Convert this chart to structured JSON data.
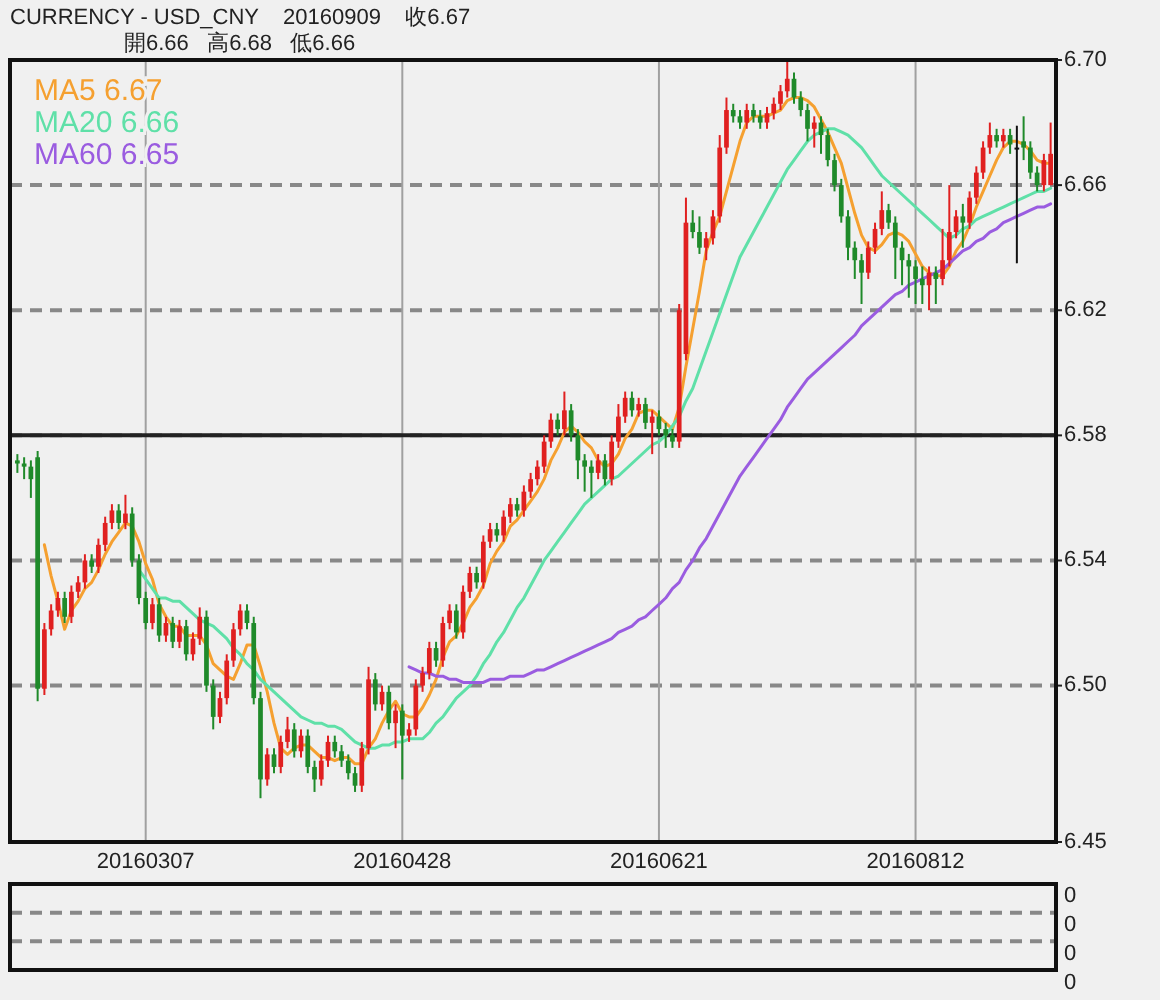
{
  "chart_data": [
    {
      "type": "candlestick",
      "title": "CURRENCY - USD_CNY    20160909    收6.67",
      "subtitle": "開6.66   高6.68   低6.66",
      "categories": [
        null,
        null,
        null,
        null,
        null,
        null,
        null,
        null,
        null,
        null,
        null,
        null,
        null,
        null,
        null,
        null,
        null,
        null,
        null,
        "20160307",
        null,
        null,
        null,
        null,
        null,
        null,
        null,
        null,
        null,
        null,
        null,
        null,
        null,
        null,
        null,
        null,
        null,
        null,
        null,
        null,
        null,
        null,
        null,
        null,
        null,
        null,
        null,
        null,
        null,
        null,
        null,
        null,
        null,
        null,
        null,
        null,
        null,
        "20160428",
        null,
        null,
        null,
        null,
        null,
        null,
        null,
        null,
        null,
        null,
        null,
        null,
        null,
        null,
        null,
        null,
        null,
        null,
        null,
        null,
        null,
        null,
        null,
        null,
        null,
        null,
        null,
        null,
        null,
        null,
        null,
        null,
        null,
        null,
        null,
        null,
        null,
        "20160621",
        null,
        null,
        null,
        null,
        null,
        null,
        null,
        null,
        null,
        null,
        null,
        null,
        null,
        null,
        null,
        null,
        null,
        null,
        null,
        null,
        null,
        null,
        null,
        null,
        null,
        null,
        null,
        null,
        null,
        null,
        null,
        null,
        null,
        null,
        null,
        null,
        null,
        "20160812",
        null,
        null,
        null,
        null,
        null,
        null,
        null,
        null,
        null,
        null,
        null,
        null,
        null,
        null,
        null,
        null,
        null,
        null,
        null,
        null
      ],
      "ohlc": [
        [
          6.572,
          6.574,
          6.568,
          6.571
        ],
        [
          6.571,
          6.573,
          6.566,
          6.57
        ],
        [
          6.57,
          6.572,
          6.56,
          6.566
        ],
        [
          6.573,
          6.575,
          6.495,
          6.499
        ],
        [
          6.499,
          6.52,
          6.497,
          6.518
        ],
        [
          6.518,
          6.526,
          6.516,
          6.524
        ],
        [
          6.524,
          6.53,
          6.522,
          6.528
        ],
        [
          6.528,
          6.53,
          6.52,
          6.522
        ],
        [
          6.522,
          6.532,
          6.52,
          6.53
        ],
        [
          6.53,
          6.535,
          6.528,
          6.533
        ],
        [
          6.533,
          6.542,
          6.531,
          6.54
        ],
        [
          6.54,
          6.542,
          6.536,
          6.538
        ],
        [
          6.538,
          6.547,
          6.536,
          6.545
        ],
        [
          6.545,
          6.554,
          6.543,
          6.552
        ],
        [
          6.552,
          6.558,
          6.55,
          6.556
        ],
        [
          6.556,
          6.558,
          6.55,
          6.552
        ],
        [
          6.552,
          6.561,
          6.55,
          6.555
        ],
        [
          6.555,
          6.557,
          6.538,
          6.54
        ],
        [
          6.54,
          6.542,
          6.526,
          6.528
        ],
        [
          6.528,
          6.53,
          6.518,
          6.52
        ],
        [
          6.52,
          6.528,
          6.518,
          6.526
        ],
        [
          6.526,
          6.528,
          6.514,
          6.516
        ],
        [
          6.516,
          6.522,
          6.514,
          6.52
        ],
        [
          6.52,
          6.522,
          6.512,
          6.514
        ],
        [
          6.514,
          6.521,
          6.512,
          6.519
        ],
        [
          6.519,
          6.521,
          6.508,
          6.51
        ],
        [
          6.51,
          6.517,
          6.508,
          6.515
        ],
        [
          6.515,
          6.525,
          6.513,
          6.522
        ],
        [
          6.522,
          6.524,
          6.498,
          6.5
        ],
        [
          6.5,
          6.502,
          6.486,
          6.49
        ],
        [
          6.49,
          6.498,
          6.488,
          6.496
        ],
        [
          6.496,
          6.51,
          6.494,
          6.508
        ],
        [
          6.508,
          6.52,
          6.506,
          6.518
        ],
        [
          6.518,
          6.526,
          6.516,
          6.524
        ],
        [
          6.524,
          6.526,
          6.518,
          6.52
        ],
        [
          6.52,
          6.522,
          6.494,
          6.496
        ],
        [
          6.496,
          6.498,
          6.464,
          6.47
        ],
        [
          6.47,
          6.48,
          6.468,
          6.478
        ],
        [
          6.478,
          6.48,
          6.472,
          6.474
        ],
        [
          6.474,
          6.484,
          6.472,
          6.482
        ],
        [
          6.482,
          6.49,
          6.48,
          6.486
        ],
        [
          6.486,
          6.488,
          6.477,
          6.479
        ],
        [
          6.479,
          6.486,
          6.477,
          6.484
        ],
        [
          6.484,
          6.486,
          6.472,
          6.474
        ],
        [
          6.474,
          6.476,
          6.466,
          6.47
        ],
        [
          6.47,
          6.478,
          6.468,
          6.476
        ],
        [
          6.476,
          6.484,
          6.474,
          6.482
        ],
        [
          6.482,
          6.484,
          6.477,
          6.479
        ],
        [
          6.479,
          6.481,
          6.474,
          6.476
        ],
        [
          6.476,
          6.478,
          6.47,
          6.472
        ],
        [
          6.472,
          6.474,
          6.466,
          6.468
        ],
        [
          6.468,
          6.482,
          6.466,
          6.48
        ],
        [
          6.48,
          6.506,
          6.478,
          6.502
        ],
        [
          6.502,
          6.504,
          6.492,
          6.494
        ],
        [
          6.494,
          6.5,
          6.492,
          6.498
        ],
        [
          6.498,
          6.5,
          6.486,
          6.488
        ],
        [
          6.488,
          6.494,
          6.48,
          6.492
        ],
        [
          6.492,
          6.494,
          6.47,
          6.484
        ],
        [
          6.484,
          6.488,
          6.482,
          6.486
        ],
        [
          6.486,
          6.502,
          6.484,
          6.5
        ],
        [
          6.5,
          6.506,
          6.498,
          6.504
        ],
        [
          6.504,
          6.514,
          6.502,
          6.512
        ],
        [
          6.512,
          6.514,
          6.506,
          6.508
        ],
        [
          6.508,
          6.522,
          6.506,
          6.52
        ],
        [
          6.52,
          6.526,
          6.518,
          6.524
        ],
        [
          6.524,
          6.526,
          6.515,
          6.517
        ],
        [
          6.517,
          6.532,
          6.515,
          6.53
        ],
        [
          6.53,
          6.538,
          6.528,
          6.536
        ],
        [
          6.536,
          6.538,
          6.531,
          6.533
        ],
        [
          6.533,
          6.548,
          6.531,
          6.546
        ],
        [
          6.546,
          6.552,
          6.544,
          6.55
        ],
        [
          6.55,
          6.552,
          6.546,
          6.548
        ],
        [
          6.548,
          6.556,
          6.546,
          6.554
        ],
        [
          6.554,
          6.56,
          6.552,
          6.558
        ],
        [
          6.558,
          6.56,
          6.554,
          6.556
        ],
        [
          6.556,
          6.564,
          6.554,
          6.562
        ],
        [
          6.562,
          6.568,
          6.56,
          6.566
        ],
        [
          6.566,
          6.572,
          6.564,
          6.57
        ],
        [
          6.57,
          6.58,
          6.568,
          6.578
        ],
        [
          6.578,
          6.587,
          6.576,
          6.585
        ],
        [
          6.585,
          6.587,
          6.58,
          6.582
        ],
        [
          6.582,
          6.594,
          6.58,
          6.588
        ],
        [
          6.588,
          6.59,
          6.578,
          6.58
        ],
        [
          6.58,
          6.582,
          6.566,
          6.572
        ],
        [
          6.572,
          6.574,
          6.562,
          6.57
        ],
        [
          6.57,
          6.572,
          6.56,
          6.568
        ],
        [
          6.568,
          6.574,
          6.566,
          6.572
        ],
        [
          6.572,
          6.574,
          6.564,
          6.566
        ],
        [
          6.566,
          6.58,
          6.564,
          6.578
        ],
        [
          6.578,
          6.59,
          6.576,
          6.586
        ],
        [
          6.586,
          6.594,
          6.584,
          6.592
        ],
        [
          6.592,
          6.594,
          6.586,
          6.588
        ],
        [
          6.588,
          6.592,
          6.586,
          6.59
        ],
        [
          6.59,
          6.592,
          6.582,
          6.584
        ],
        [
          6.584,
          6.588,
          6.574,
          6.586
        ],
        [
          6.586,
          6.588,
          6.58,
          6.582
        ],
        [
          6.582,
          6.584,
          6.576,
          6.58
        ],
        [
          6.58,
          6.582,
          6.576,
          6.578
        ],
        [
          6.578,
          6.622,
          6.576,
          6.62
        ],
        [
          6.606,
          6.656,
          6.604,
          6.648
        ],
        [
          6.648,
          6.652,
          6.643,
          6.645
        ],
        [
          6.645,
          6.65,
          6.638,
          6.64
        ],
        [
          6.64,
          6.645,
          6.636,
          6.643
        ],
        [
          6.643,
          6.652,
          6.641,
          6.65
        ],
        [
          6.65,
          6.676,
          6.648,
          6.672
        ],
        [
          6.672,
          6.688,
          6.67,
          6.684
        ],
        [
          6.684,
          6.686,
          6.68,
          6.682
        ],
        [
          6.682,
          6.684,
          6.678,
          6.68
        ],
        [
          6.68,
          6.686,
          6.678,
          6.684
        ],
        [
          6.684,
          6.686,
          6.68,
          6.682
        ],
        [
          6.682,
          6.684,
          6.678,
          6.68
        ],
        [
          6.68,
          6.685,
          6.678,
          6.683
        ],
        [
          6.683,
          6.688,
          6.681,
          6.686
        ],
        [
          6.686,
          6.692,
          6.684,
          6.69
        ],
        [
          6.69,
          6.7,
          6.688,
          6.694
        ],
        [
          6.694,
          6.696,
          6.686,
          6.688
        ],
        [
          6.688,
          6.69,
          6.682,
          6.684
        ],
        [
          6.684,
          6.686,
          6.674,
          6.678
        ],
        [
          6.678,
          6.682,
          6.672,
          6.68
        ],
        [
          6.68,
          6.682,
          6.67,
          6.676
        ],
        [
          6.676,
          6.678,
          6.666,
          6.668
        ],
        [
          6.668,
          6.67,
          6.658,
          6.66
        ],
        [
          6.66,
          6.662,
          6.648,
          6.65
        ],
        [
          6.65,
          6.652,
          6.636,
          6.64
        ],
        [
          6.64,
          6.642,
          6.63,
          6.636
        ],
        [
          6.636,
          6.638,
          6.622,
          6.632
        ],
        [
          6.632,
          6.642,
          6.63,
          6.64
        ],
        [
          6.64,
          6.648,
          6.638,
          6.646
        ],
        [
          6.646,
          6.658,
          6.644,
          6.652
        ],
        [
          6.652,
          6.654,
          6.646,
          6.648
        ],
        [
          6.648,
          6.65,
          6.63,
          6.64
        ],
        [
          6.64,
          6.642,
          6.628,
          6.636
        ],
        [
          6.636,
          6.638,
          6.624,
          6.634
        ],
        [
          6.634,
          6.636,
          6.622,
          6.63
        ],
        [
          6.63,
          6.634,
          6.622,
          6.628
        ],
        [
          6.628,
          6.634,
          6.62,
          6.632
        ],
        [
          6.632,
          6.634,
          6.622,
          6.63
        ],
        [
          6.63,
          6.646,
          6.628,
          6.636
        ],
        [
          6.636,
          6.66,
          6.634,
          6.645
        ],
        [
          6.645,
          6.652,
          6.643,
          6.65
        ],
        [
          6.65,
          6.654,
          6.64,
          6.648
        ],
        [
          6.648,
          6.658,
          6.646,
          6.656
        ],
        [
          6.656,
          6.666,
          6.654,
          6.664
        ],
        [
          6.664,
          6.674,
          6.662,
          6.672
        ],
        [
          6.672,
          6.68,
          6.67,
          6.676
        ],
        [
          6.676,
          6.678,
          6.672,
          6.674
        ],
        [
          6.674,
          6.678,
          6.672,
          6.676
        ],
        [
          6.676,
          6.678,
          6.67,
          6.673
        ],
        [
          6.672,
          6.679,
          6.635,
          6.672
        ],
        [
          6.674,
          6.682,
          6.668,
          6.672
        ],
        [
          6.672,
          6.674,
          6.662,
          6.664
        ],
        [
          6.664,
          6.666,
          6.658,
          6.66
        ],
        [
          6.66,
          6.67,
          6.658,
          6.668
        ],
        [
          6.66,
          6.68,
          6.66,
          6.67
        ]
      ],
      "series": [
        {
          "name": "MA5 6.67",
          "type": "line",
          "color": "#f5a030",
          "values": [
            null,
            null,
            null,
            null,
            6.545,
            6.535,
            6.527,
            6.518,
            6.524,
            6.527,
            6.531,
            6.533,
            6.537,
            6.542,
            6.546,
            6.549,
            6.552,
            6.551,
            6.546,
            6.539,
            6.534,
            6.526,
            6.522,
            6.519,
            6.519,
            6.516,
            6.516,
            6.516,
            6.513,
            6.507,
            6.505,
            6.503,
            6.502,
            6.507,
            6.513,
            6.513,
            6.506,
            6.498,
            6.488,
            6.48,
            6.478,
            6.48,
            6.481,
            6.481,
            6.479,
            6.477,
            6.477,
            6.476,
            6.477,
            6.477,
            6.475,
            6.475,
            6.48,
            6.483,
            6.488,
            6.492,
            6.495,
            6.491,
            6.49,
            6.49,
            6.493,
            6.497,
            6.502,
            6.509,
            6.514,
            6.516,
            6.52,
            6.525,
            6.528,
            6.532,
            6.539,
            6.543,
            6.546,
            6.551,
            6.553,
            6.556,
            6.559,
            6.562,
            6.566,
            6.572,
            6.576,
            6.581,
            6.583,
            6.581,
            6.578,
            6.576,
            6.572,
            6.57,
            6.571,
            6.574,
            6.579,
            6.582,
            6.587,
            6.588,
            6.588,
            6.586,
            6.584,
            6.582,
            6.589,
            6.602,
            6.614,
            6.626,
            6.639,
            6.645,
            6.65,
            6.658,
            6.666,
            6.674,
            6.68,
            6.682,
            6.682,
            6.682,
            6.683,
            6.684,
            6.687,
            6.688,
            6.688,
            6.687,
            6.685,
            6.681,
            6.677,
            6.672,
            6.667,
            6.659,
            6.651,
            6.644,
            6.64,
            6.639,
            6.641,
            6.644,
            6.645,
            6.644,
            6.642,
            6.638,
            6.634,
            6.632,
            6.631,
            6.631,
            6.634,
            6.639,
            6.642,
            6.647,
            6.653,
            6.658,
            6.663,
            6.668,
            6.672,
            6.674,
            6.674,
            6.673,
            6.671,
            6.668,
            6.667,
            6.667
          ]
        },
        {
          "name": "MA20 6.66",
          "type": "line",
          "color": "#5fe0a8",
          "values": [
            null,
            null,
            null,
            null,
            null,
            null,
            null,
            null,
            null,
            null,
            null,
            null,
            null,
            null,
            null,
            null,
            null,
            null,
            6.537,
            6.534,
            6.531,
            6.528,
            6.528,
            6.527,
            6.527,
            6.525,
            6.523,
            6.521,
            6.52,
            6.519,
            6.517,
            6.515,
            6.512,
            6.51,
            6.507,
            6.505,
            6.502,
            6.5,
            6.498,
            6.496,
            6.494,
            6.492,
            6.49,
            6.489,
            6.488,
            6.488,
            6.487,
            6.487,
            6.486,
            6.484,
            6.482,
            6.481,
            6.48,
            6.48,
            6.481,
            6.481,
            6.482,
            6.482,
            6.483,
            6.483,
            6.483,
            6.485,
            6.488,
            6.49,
            6.493,
            6.496,
            6.498,
            6.5,
            6.503,
            6.507,
            6.51,
            6.514,
            6.517,
            6.521,
            6.525,
            6.528,
            6.532,
            6.536,
            6.54,
            6.543,
            6.546,
            6.549,
            6.552,
            6.555,
            6.558,
            6.56,
            6.562,
            6.564,
            6.566,
            6.567,
            6.569,
            6.571,
            6.573,
            6.575,
            6.577,
            6.578,
            6.58,
            6.583,
            6.586,
            6.591,
            6.595,
            6.601,
            6.607,
            6.613,
            6.619,
            6.625,
            6.631,
            6.637,
            6.641,
            6.645,
            6.649,
            6.653,
            6.657,
            6.661,
            6.665,
            6.668,
            6.671,
            6.674,
            6.676,
            6.677,
            6.678,
            6.678,
            6.677,
            6.676,
            6.674,
            6.672,
            6.669,
            6.666,
            6.663,
            6.661,
            6.659,
            6.657,
            6.655,
            6.653,
            6.651,
            6.649,
            6.647,
            6.645,
            6.643,
            6.644,
            6.646,
            6.647,
            6.649,
            6.65,
            6.651,
            6.652,
            6.653,
            6.654,
            6.655,
            6.656,
            6.657,
            6.658,
            6.658,
            6.659
          ]
        },
        {
          "name": "MA60 6.65",
          "type": "line",
          "color": "#9a5ce0",
          "values": [
            null,
            null,
            null,
            null,
            null,
            null,
            null,
            null,
            null,
            null,
            null,
            null,
            null,
            null,
            null,
            null,
            null,
            null,
            null,
            null,
            null,
            null,
            null,
            null,
            null,
            null,
            null,
            null,
            null,
            null,
            null,
            null,
            null,
            null,
            null,
            null,
            null,
            null,
            null,
            null,
            null,
            null,
            null,
            null,
            null,
            null,
            null,
            null,
            null,
            null,
            null,
            null,
            null,
            null,
            null,
            null,
            null,
            null,
            6.506,
            6.505,
            6.504,
            6.504,
            6.503,
            6.503,
            6.502,
            6.502,
            6.501,
            6.501,
            6.501,
            6.501,
            6.502,
            6.502,
            6.502,
            6.503,
            6.503,
            6.503,
            6.504,
            6.505,
            6.505,
            6.506,
            6.507,
            6.508,
            6.509,
            6.51,
            6.511,
            6.512,
            6.513,
            6.514,
            6.515,
            6.517,
            6.518,
            6.519,
            6.521,
            6.522,
            6.524,
            6.526,
            6.528,
            6.531,
            6.533,
            6.537,
            6.54,
            6.544,
            6.547,
            6.551,
            6.555,
            6.559,
            6.563,
            6.567,
            6.57,
            6.573,
            6.576,
            6.579,
            6.582,
            6.585,
            6.589,
            6.592,
            6.595,
            6.598,
            6.6,
            6.602,
            6.604,
            6.606,
            6.608,
            6.61,
            6.612,
            6.615,
            6.617,
            6.619,
            6.621,
            6.623,
            6.625,
            6.626,
            6.628,
            6.629,
            6.63,
            6.631,
            6.632,
            6.633,
            6.635,
            6.637,
            6.639,
            6.64,
            6.642,
            6.643,
            6.645,
            6.646,
            6.648,
            6.649,
            6.65,
            6.651,
            6.652,
            6.653,
            6.653,
            6.654
          ]
        }
      ],
      "ylim": [
        6.45,
        6.7
      ],
      "yticks": [
        {
          "value": 6.7,
          "label": "6.70"
        },
        6.66,
        6.62,
        6.58,
        6.54,
        {
          "value": 6.5,
          "label": "6.50"
        },
        6.45
      ],
      "ref_lines": [
        {
          "axis": "y",
          "value": 6.58,
          "color": "#222222"
        }
      ],
      "grid": true,
      "legend": "top left"
    },
    {
      "type": "other",
      "annotations": [
        "0",
        "0",
        "0",
        "0"
      ]
    }
  ]
}
